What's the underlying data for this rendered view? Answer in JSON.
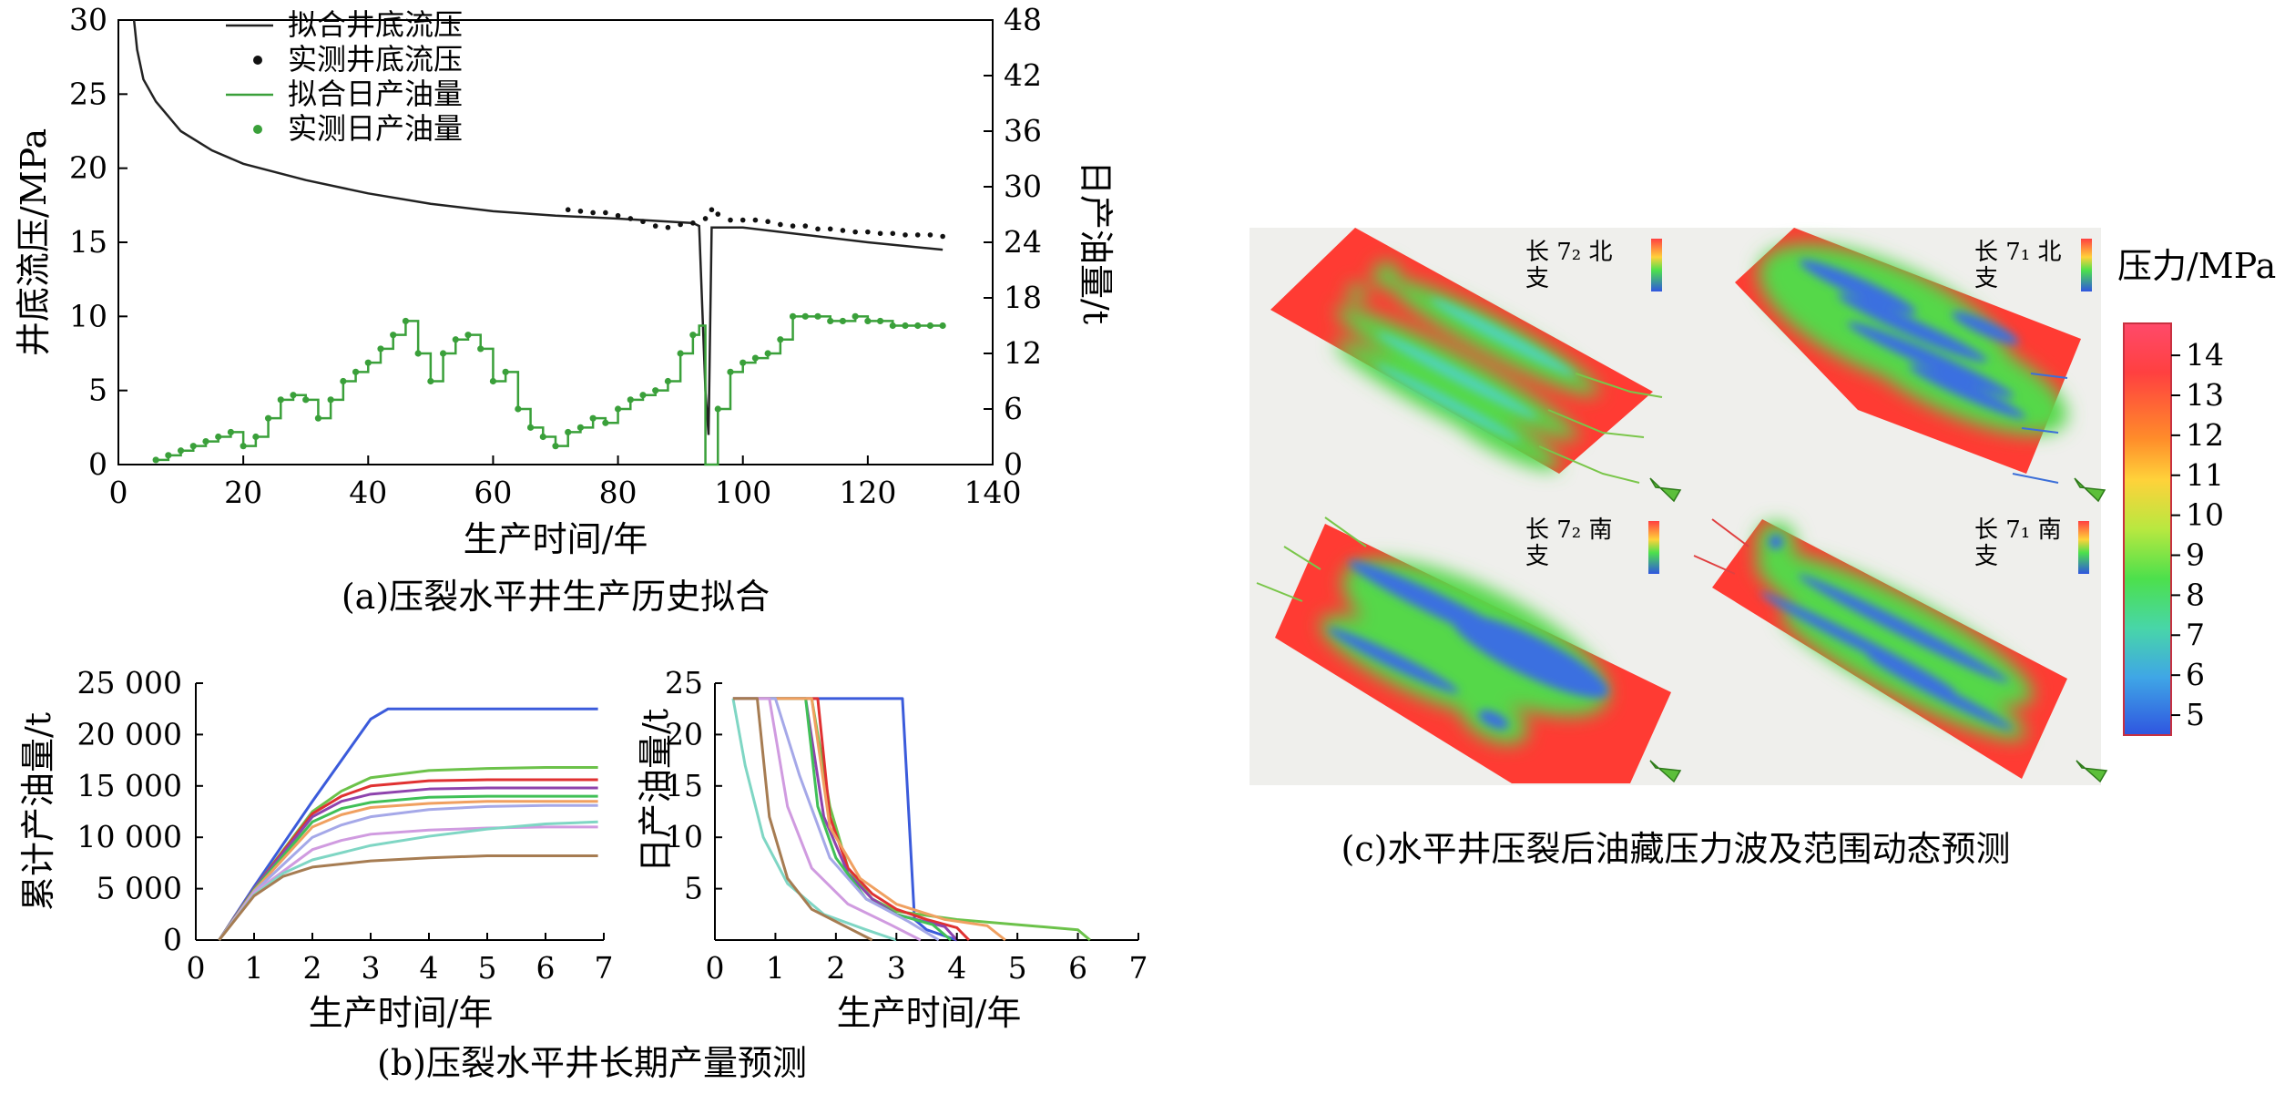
{
  "captions": {
    "a": "(a)压裂水平井生产历史拟合",
    "b": "(b)压裂水平井长期产量预测",
    "c": "(c)水平井压裂后油藏压力波及范围动态预测"
  },
  "chart_data": [
    {
      "id": "a",
      "type": "line",
      "xlabel": "生产时间/年",
      "ylabel_left": "井底流压/MPa",
      "ylabel_right": "日产油量/t",
      "xlim": [
        0,
        140
      ],
      "ylim_left": [
        0,
        30
      ],
      "ylim_right": [
        0,
        48
      ],
      "xticks": [
        "0",
        "20",
        "40",
        "60",
        "80",
        "100",
        "120",
        "140"
      ],
      "yticks_left": [
        "0",
        "5",
        "10",
        "15",
        "20",
        "25",
        "30"
      ],
      "yticks_right": [
        "0",
        "6",
        "12",
        "18",
        "24",
        "30",
        "36",
        "42",
        "48"
      ],
      "legend_position": "top-left",
      "series": [
        {
          "name": "拟合井底流压",
          "axis": "left",
          "style": "line",
          "color": "#222222",
          "x": [
            2.5,
            3,
            4,
            6,
            8,
            10,
            15,
            20,
            30,
            40,
            50,
            60,
            70,
            80,
            88,
            92,
            93,
            94,
            94.5,
            95,
            100,
            110,
            120,
            132
          ],
          "y": [
            30,
            28,
            26,
            24.5,
            23.5,
            22.5,
            21.2,
            20.3,
            19.2,
            18.3,
            17.6,
            17.1,
            16.8,
            16.6,
            16.4,
            16.3,
            16.1,
            5,
            2,
            16,
            16,
            15.5,
            15,
            14.5
          ]
        },
        {
          "name": "实测井底流压",
          "axis": "left",
          "style": "points",
          "color": "#111111",
          "x": [
            72,
            74,
            76,
            78,
            80,
            82,
            84,
            86,
            88,
            90,
            92,
            94,
            95,
            96,
            98,
            100,
            102,
            104,
            106,
            108,
            110,
            112,
            114,
            116,
            118,
            120,
            122,
            124,
            126,
            128,
            130,
            132
          ],
          "y": [
            17.2,
            17.1,
            17.0,
            17.0,
            16.8,
            16.6,
            16.4,
            16.1,
            16.0,
            16.2,
            16.3,
            16.6,
            17.2,
            16.9,
            16.5,
            16.5,
            16.5,
            16.4,
            16.2,
            16.1,
            16.1,
            15.9,
            15.9,
            15.8,
            15.7,
            15.7,
            15.6,
            15.6,
            15.5,
            15.5,
            15.5,
            15.4
          ]
        },
        {
          "name": "拟合日产油量",
          "axis": "right",
          "style": "step",
          "color": "#3aa03a",
          "x": [
            6,
            8,
            10,
            12,
            14,
            16,
            18,
            20,
            22,
            24,
            26,
            28,
            30,
            32,
            34,
            36,
            38,
            40,
            42,
            44,
            46,
            48,
            50,
            52,
            54,
            56,
            58,
            60,
            62,
            64,
            66,
            68,
            70,
            72,
            74,
            76,
            78,
            80,
            82,
            84,
            86,
            88,
            90,
            92,
            93,
            94,
            96,
            98,
            100,
            102,
            104,
            106,
            108,
            110,
            112,
            114,
            116,
            118,
            120,
            122,
            124,
            126,
            128,
            130,
            132
          ],
          "y": [
            0.5,
            1,
            1.5,
            2,
            2.5,
            3,
            3.5,
            2,
            3,
            5,
            7,
            7.5,
            7,
            5,
            7,
            9,
            10,
            11,
            12.5,
            14,
            15.5,
            12,
            9,
            12,
            13.5,
            14,
            12.5,
            9,
            10,
            6,
            4,
            3,
            2,
            3.5,
            4,
            5,
            4.5,
            6,
            7,
            7.5,
            8,
            9,
            12,
            14,
            15,
            0,
            6,
            10,
            11,
            11.5,
            12,
            13.5,
            16,
            16,
            16,
            15.5,
            15.5,
            16,
            15.5,
            15.5,
            15,
            15,
            15,
            15,
            15
          ]
        },
        {
          "name": "实测日产油量",
          "axis": "right",
          "style": "points",
          "color": "#3aa03a",
          "x": [
            6,
            8,
            10,
            12,
            14,
            16,
            18,
            20,
            22,
            24,
            26,
            28,
            30,
            32,
            34,
            36,
            38,
            40,
            42,
            44,
            46,
            48,
            50,
            52,
            54,
            56,
            58,
            60,
            62,
            64,
            66,
            68,
            70,
            72,
            74,
            76,
            78,
            80,
            82,
            84,
            86,
            88,
            90,
            92,
            96,
            98,
            100,
            102,
            104,
            106,
            108,
            110,
            112,
            114,
            116,
            118,
            120,
            122,
            124,
            126,
            128,
            130,
            132
          ],
          "y": [
            0.5,
            1,
            1.5,
            2,
            2.5,
            3,
            3.5,
            2,
            3,
            5,
            7,
            7.5,
            7,
            5,
            7,
            9,
            10,
            11,
            12.5,
            14,
            15.5,
            12,
            9,
            12,
            13.5,
            14,
            12.5,
            9,
            10,
            6,
            4,
            3,
            2,
            3.5,
            4,
            5,
            4.5,
            6,
            7,
            7.5,
            8,
            9,
            12,
            14,
            6,
            10,
            11,
            11.5,
            12,
            13.5,
            16,
            16,
            16,
            15.5,
            15.5,
            16,
            15.5,
            15.5,
            15,
            15,
            15,
            15,
            15
          ]
        }
      ]
    },
    {
      "id": "b1",
      "type": "line",
      "xlabel": "生产时间/年",
      "ylabel": "累计产油量/t",
      "xlim": [
        0,
        7
      ],
      "ylim": [
        0,
        25000
      ],
      "xticks": [
        "0",
        "1",
        "2",
        "3",
        "4",
        "5",
        "6",
        "7"
      ],
      "yticks": [
        "0",
        "5 000",
        "10 000",
        "15 000",
        "20 000",
        "25 000"
      ],
      "series": [
        {
          "color": "#3b5bdb",
          "x": [
            0.4,
            1,
            2,
            3,
            3.3,
            4,
            5,
            6,
            6.9
          ],
          "y": [
            0,
            5200,
            13500,
            21500,
            22500,
            22500,
            22500,
            22500,
            22500
          ]
        },
        {
          "color": "#6cc24a",
          "x": [
            0.4,
            1,
            2,
            2.5,
            3,
            4,
            5,
            6,
            6.9
          ],
          "y": [
            0,
            5000,
            12500,
            14500,
            15800,
            16500,
            16700,
            16800,
            16800
          ]
        },
        {
          "color": "#e03131",
          "x": [
            0.4,
            1,
            2,
            2.5,
            3,
            4,
            5,
            6,
            6.9
          ],
          "y": [
            0,
            5000,
            12300,
            14000,
            15000,
            15500,
            15600,
            15600,
            15600
          ]
        },
        {
          "color": "#8e44ad",
          "x": [
            0.4,
            1,
            2,
            2.5,
            3,
            4,
            5,
            6,
            6.9
          ],
          "y": [
            0,
            5000,
            12000,
            13500,
            14200,
            14700,
            14800,
            14800,
            14800
          ]
        },
        {
          "color": "#40c057",
          "x": [
            0.4,
            1,
            2,
            2.5,
            3,
            4,
            5,
            6,
            6.9
          ],
          "y": [
            0,
            4900,
            11500,
            12800,
            13400,
            13900,
            14000,
            14000,
            14000
          ]
        },
        {
          "color": "#f0a060",
          "x": [
            0.4,
            1,
            2,
            2.5,
            3,
            4,
            5,
            6,
            6.9
          ],
          "y": [
            0,
            4800,
            11000,
            12200,
            12900,
            13300,
            13500,
            13500,
            13500
          ]
        },
        {
          "color": "#a5a8e8",
          "x": [
            0.4,
            1,
            2,
            2.5,
            3,
            4,
            5,
            6,
            6.9
          ],
          "y": [
            0,
            4700,
            10000,
            11200,
            12000,
            12700,
            13000,
            13100,
            13100
          ]
        },
        {
          "color": "#d09be0",
          "x": [
            0.4,
            1,
            2,
            2.5,
            3,
            4,
            5,
            6,
            6.9
          ],
          "y": [
            0,
            4600,
            8800,
            9700,
            10300,
            10700,
            10900,
            11000,
            11000
          ]
        },
        {
          "color": "#7fd6c4",
          "x": [
            0.4,
            1,
            1.5,
            2,
            3,
            4,
            5,
            6,
            6.9
          ],
          "y": [
            0,
            4400,
            6500,
            7800,
            9200,
            10100,
            10800,
            11300,
            11500
          ]
        },
        {
          "color": "#a67c52",
          "x": [
            0.4,
            1,
            1.5,
            2,
            3,
            4,
            5,
            6,
            6.9
          ],
          "y": [
            0,
            4300,
            6200,
            7100,
            7700,
            8000,
            8200,
            8200,
            8200
          ]
        }
      ]
    },
    {
      "id": "b2",
      "type": "line",
      "xlabel": "生产时间/年",
      "ylabel": "日产油量/t",
      "xlim": [
        0,
        7
      ],
      "ylim": [
        0,
        25
      ],
      "xticks": [
        "0",
        "1",
        "2",
        "3",
        "4",
        "5",
        "6",
        "7"
      ],
      "yticks": [
        "5",
        "10",
        "15",
        "20",
        "25"
      ],
      "series": [
        {
          "color": "#3b5bdb",
          "x": [
            0.3,
            3.1,
            3.3,
            3.5,
            4.0
          ],
          "y": [
            23.5,
            23.5,
            2,
            1,
            0
          ]
        },
        {
          "color": "#6cc24a",
          "x": [
            0.3,
            1.6,
            1.9,
            2.2,
            2.6,
            3.0,
            4.0,
            5.0,
            6.0,
            6.2
          ],
          "y": [
            23.5,
            23.5,
            13,
            7,
            4,
            2.8,
            2,
            1.5,
            1,
            0
          ]
        },
        {
          "color": "#e03131",
          "x": [
            0.3,
            1.7,
            1.9,
            2.2,
            2.6,
            3.0,
            3.5,
            4.0,
            4.2
          ],
          "y": [
            23.5,
            23.5,
            12,
            7,
            4.5,
            3,
            2,
            1.2,
            0
          ]
        },
        {
          "color": "#8e44ad",
          "x": [
            0.3,
            1.5,
            1.8,
            2.2,
            2.6,
            3.0,
            3.8,
            4.0
          ],
          "y": [
            23.5,
            23.5,
            12,
            6.5,
            4,
            2.5,
            1.3,
            0
          ]
        },
        {
          "color": "#40c057",
          "x": [
            0.3,
            1.5,
            1.7,
            2.0,
            2.5,
            3.0,
            3.6,
            3.9
          ],
          "y": [
            23.5,
            23.5,
            13,
            8,
            4,
            2.5,
            1.5,
            0
          ]
        },
        {
          "color": "#f0a060",
          "x": [
            0.3,
            1.6,
            1.9,
            2.4,
            3.0,
            3.8,
            4.5,
            4.8
          ],
          "y": [
            23.5,
            23.5,
            11,
            6,
            3.5,
            2,
            1.4,
            0
          ]
        },
        {
          "color": "#a5a8e8",
          "x": [
            0.3,
            1.0,
            1.4,
            1.9,
            2.5,
            3.2,
            3.7
          ],
          "y": [
            23.5,
            23.5,
            16,
            8,
            4,
            1.8,
            0
          ]
        },
        {
          "color": "#d09be0",
          "x": [
            0.3,
            0.9,
            1.2,
            1.6,
            2.2,
            2.9,
            3.4
          ],
          "y": [
            23.5,
            23.5,
            13,
            7,
            3.5,
            1.5,
            0
          ]
        },
        {
          "color": "#7fd6c4",
          "x": [
            0.3,
            0.5,
            0.8,
            1.2,
            1.8,
            2.5,
            3.0
          ],
          "y": [
            23.5,
            17,
            10,
            5.5,
            2.5,
            1,
            0
          ]
        },
        {
          "color": "#a67c52",
          "x": [
            0.3,
            0.7,
            0.9,
            1.2,
            1.6,
            2.2,
            2.6
          ],
          "y": [
            23.5,
            23.5,
            12,
            6,
            3,
            1.2,
            0
          ]
        }
      ]
    },
    {
      "id": "c",
      "type": "heatmap",
      "panel_labels": [
        "长 7₂ 北支",
        "长 7₁ 北支",
        "长 7₂ 南支",
        "长 7₁ 南支"
      ],
      "colorbar_title": "压力/MPa",
      "colorbar_ticks": [
        "14",
        "13",
        "12",
        "11",
        "10",
        "9",
        "8",
        "7",
        "6",
        "5"
      ],
      "colorbar_range": [
        4.5,
        14.8
      ],
      "colorbar_colors": [
        "#ff3333",
        "#ff8c2a",
        "#ffd23a",
        "#b8e840",
        "#4ce04c",
        "#48d6a8",
        "#3fa6e6",
        "#2f55e0"
      ]
    }
  ]
}
